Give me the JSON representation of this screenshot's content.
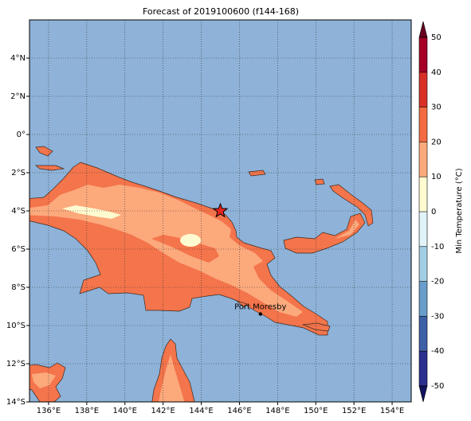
{
  "title": "Forecast of 2019100600 (f144-168)",
  "map": {
    "lon_range": [
      135,
      155
    ],
    "lat_range": [
      -14,
      6
    ],
    "grid": true,
    "ocean_color": "#8eb2d8",
    "lon_ticks": [
      {
        "value": 136,
        "label": "136°E"
      },
      {
        "value": 138,
        "label": "138°E"
      },
      {
        "value": 140,
        "label": "140°E"
      },
      {
        "value": 142,
        "label": "142°E"
      },
      {
        "value": 144,
        "label": "144°E"
      },
      {
        "value": 146,
        "label": "146°E"
      },
      {
        "value": 148,
        "label": "148°E"
      },
      {
        "value": 150,
        "label": "150°E"
      },
      {
        "value": 152,
        "label": "152°E"
      },
      {
        "value": 154,
        "label": "154°E"
      }
    ],
    "lat_ticks": [
      {
        "value": 4,
        "label": "4°N"
      },
      {
        "value": 2,
        "label": "2°N"
      },
      {
        "value": 0,
        "label": "0°"
      },
      {
        "value": -2,
        "label": "2°S"
      },
      {
        "value": -4,
        "label": "4°S"
      },
      {
        "value": -6,
        "label": "6°S"
      },
      {
        "value": -8,
        "label": "8°S"
      },
      {
        "value": -10,
        "label": "10°S"
      },
      {
        "value": -12,
        "label": "12°S"
      },
      {
        "value": -14,
        "label": "14°S"
      }
    ]
  },
  "marker": {
    "lon": 145,
    "lat": -4.0,
    "color": "#e8261e"
  },
  "city": {
    "label": "Port Moresby",
    "lon": 147.1,
    "lat": -9.4
  },
  "colorbar": {
    "label": "Min Temperature (°C)",
    "ticks": [
      -50,
      -40,
      -30,
      -20,
      -10,
      0,
      10,
      20,
      30,
      40,
      50
    ],
    "colors": [
      "#2b2f8e",
      "#3d5fa8",
      "#6a9dcb",
      "#a3cfe5",
      "#e0f3f8",
      "#fffbd0",
      "#fca97c",
      "#f26b43",
      "#d73027",
      "#a50026"
    ],
    "under_color": "#131460",
    "over_color": "#67001f"
  }
}
